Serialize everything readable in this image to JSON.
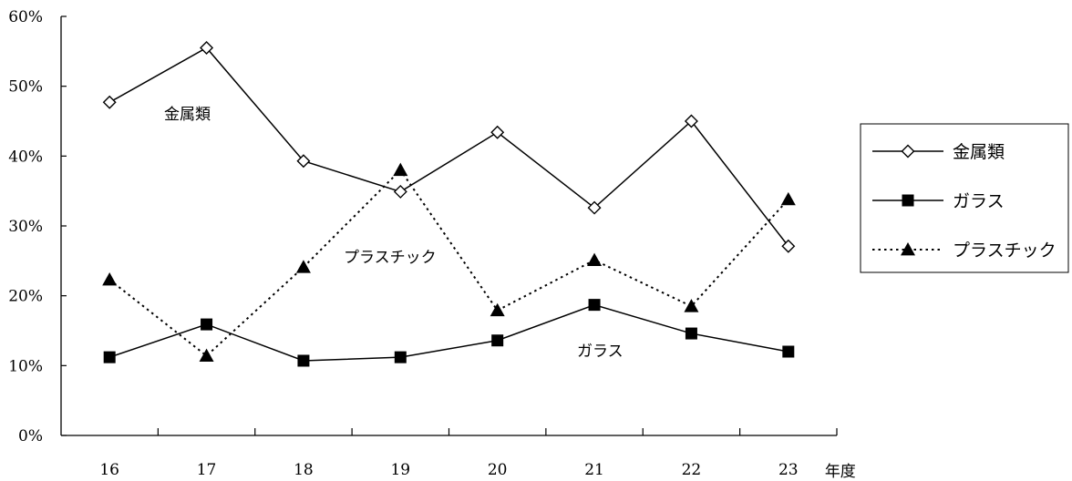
{
  "chart_data": {
    "type": "line",
    "categories": [
      "16",
      "17",
      "18",
      "19",
      "20",
      "21",
      "22",
      "23"
    ],
    "xlabel": "年度",
    "ylabel": "",
    "ylim": [
      0,
      60
    ],
    "yticks": [
      "0%",
      "10%",
      "20%",
      "30%",
      "40%",
      "50%",
      "60%"
    ],
    "grid": false,
    "legend_position": "right",
    "series": [
      {
        "name": "金属類",
        "marker": "diamond-open",
        "line_style": "solid",
        "color": "#000000",
        "values": [
          47.7,
          55.5,
          39.3,
          34.9,
          43.4,
          32.6,
          45.0,
          27.1
        ]
      },
      {
        "name": "ガラス",
        "marker": "square-filled",
        "line_style": "solid",
        "color": "#000000",
        "values": [
          11.2,
          15.9,
          10.7,
          11.2,
          13.6,
          18.7,
          14.6,
          12.0
        ]
      },
      {
        "name": "プラスチック",
        "marker": "triangle-filled",
        "line_style": "dotted",
        "color": "#000000",
        "values": [
          22.3,
          11.4,
          24.1,
          38.0,
          17.9,
          25.1,
          18.5,
          33.8
        ]
      }
    ],
    "annotations": [
      {
        "text": "金属類",
        "series": "金属類"
      },
      {
        "text": "プラスチック",
        "series": "プラスチック"
      },
      {
        "text": "ガラス",
        "series": "ガラス"
      }
    ]
  }
}
